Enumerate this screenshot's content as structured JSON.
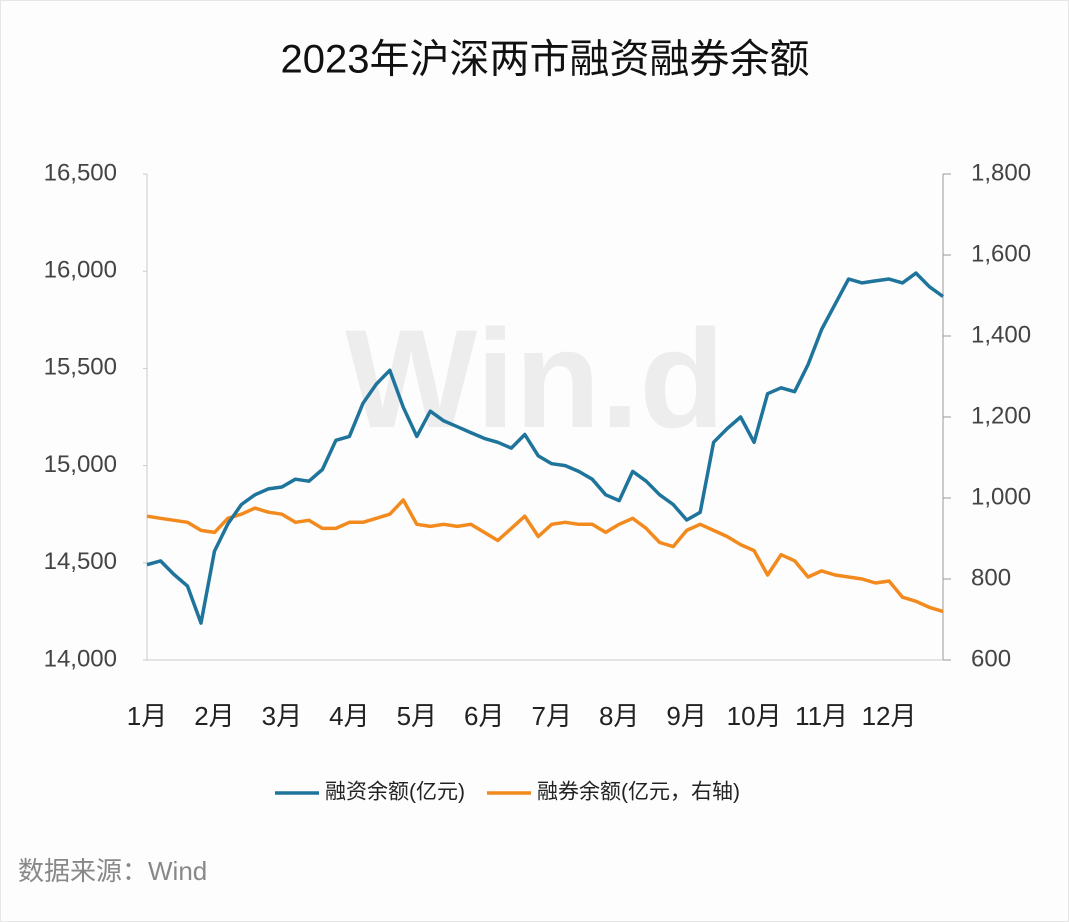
{
  "chart_data": {
    "type": "line",
    "title": "2023年沪深两市融资融券余额",
    "watermark": "Win.d",
    "source": "数据来源：Wind",
    "categories": [
      "1月",
      null,
      null,
      null,
      null,
      "2月",
      null,
      null,
      null,
      null,
      "3月",
      null,
      null,
      null,
      null,
      "4月",
      null,
      null,
      null,
      null,
      "5月",
      null,
      null,
      null,
      null,
      "6月",
      null,
      null,
      null,
      null,
      "7月",
      null,
      null,
      null,
      null,
      "8月",
      null,
      null,
      null,
      null,
      "9月",
      null,
      null,
      null,
      null,
      "10月",
      null,
      null,
      null,
      null,
      "11月",
      null,
      null,
      null,
      null,
      "12月",
      null,
      null,
      null,
      null
    ],
    "series": [
      {
        "name": "融资余额(亿元)",
        "color": "#1f749c",
        "values": [
          14490,
          14510,
          14440,
          14380,
          14190,
          14560,
          14700,
          14800,
          14850,
          14880,
          14890,
          14930,
          14920,
          14980,
          15130,
          15150,
          15320,
          15420,
          15490,
          15300,
          15150,
          15280,
          15230,
          15200,
          15170,
          15140,
          15120,
          15090,
          15160,
          15050,
          15010,
          15000,
          14970,
          14930,
          14850,
          14820,
          14970,
          14920,
          14850,
          14800,
          14720,
          14760,
          15120,
          15190,
          15250,
          15120,
          15370,
          15400,
          15380,
          15520,
          15700,
          15830,
          15960,
          15940,
          15950,
          15960,
          15940,
          15990,
          15920,
          15870
        ]
      },
      {
        "name": "融券余额(亿元，右轴)",
        "color": "#f28a1e",
        "axis": "y2",
        "values": [
          955,
          950,
          945,
          940,
          920,
          915,
          950,
          960,
          975,
          965,
          960,
          940,
          945,
          925,
          925,
          940,
          940,
          950,
          960,
          995,
          935,
          930,
          935,
          930,
          935,
          915,
          895,
          925,
          955,
          905,
          935,
          940,
          935,
          935,
          915,
          935,
          950,
          925,
          890,
          880,
          920,
          935,
          920,
          905,
          885,
          870,
          810,
          860,
          845,
          805,
          820,
          810,
          805,
          800,
          790,
          795,
          755,
          745,
          730,
          720
        ]
      }
    ],
    "ylim": [
      14000,
      16500
    ],
    "yticks": [
      {
        "value": 14000,
        "label": "14,000"
      },
      {
        "value": 14500,
        "label": "14,500"
      },
      {
        "value": 15000,
        "label": "15,000"
      },
      {
        "value": 15500,
        "label": "15,500"
      },
      {
        "value": 16000,
        "label": "16,000"
      },
      {
        "value": 16500,
        "label": "16,500"
      }
    ],
    "y2lim": [
      600,
      1800
    ],
    "y2ticks": [
      600,
      800,
      {
        "value": 1000,
        "label": "1,000"
      },
      {
        "value": 1200,
        "label": "1,200"
      },
      {
        "value": 1400,
        "label": "1,400"
      },
      {
        "value": 1600,
        "label": "1,600"
      },
      {
        "value": 1800,
        "label": "1,800"
      }
    ],
    "legend": "bottom"
  }
}
